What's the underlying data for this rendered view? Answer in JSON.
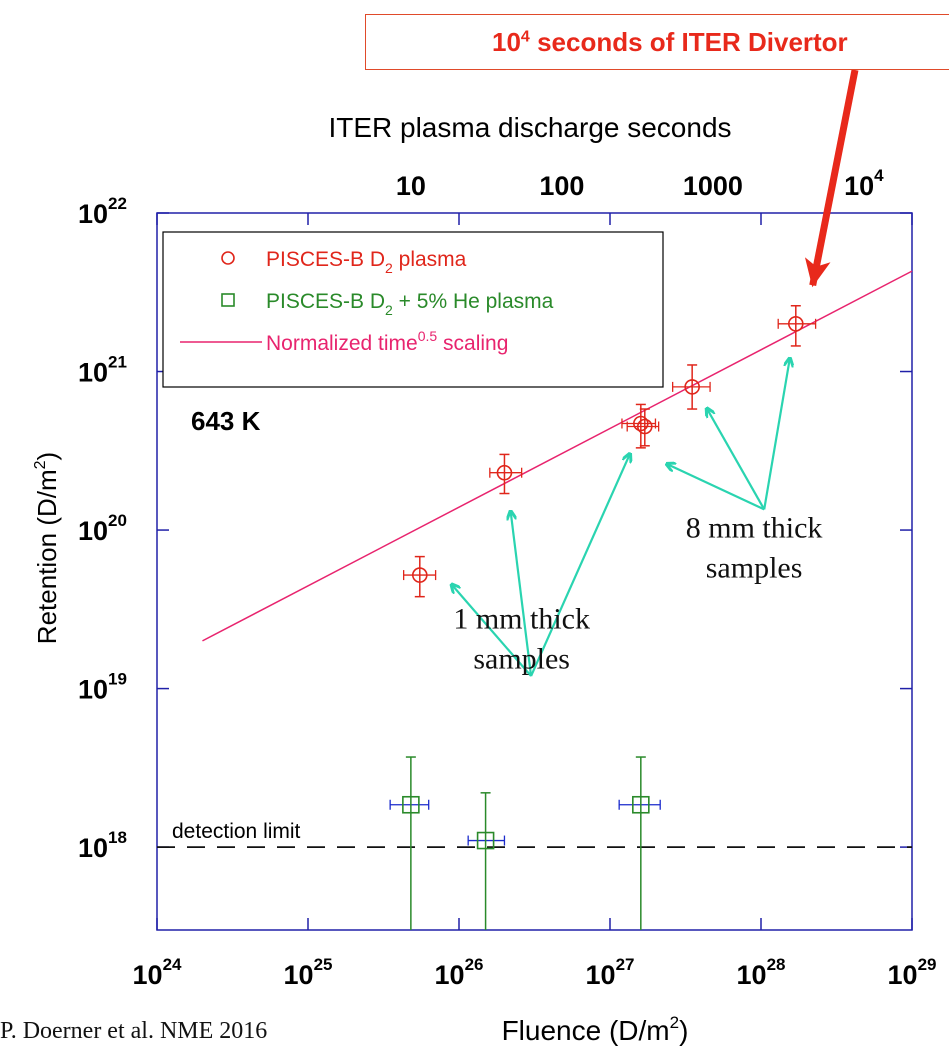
{
  "banner": {
    "exponent": "4",
    "text": "seconds of ITER Divertor"
  },
  "citation": "P. Doerner et al. NME 2016",
  "chart_data": {
    "type": "scatter",
    "xlabel": "Fluence (D/m²)",
    "ylabel": "Retention (D/m²)",
    "top_axis_label": "ITER plasma discharge seconds",
    "top_ticks": [
      {
        "label": "10",
        "fluence": 4.8e+25
      },
      {
        "label": "100",
        "fluence": 4.8e+26
      },
      {
        "label": "1000",
        "fluence": 4.8e+27
      },
      {
        "label": "10⁴",
        "fluence": 4.8e+28
      }
    ],
    "x_log": true,
    "y_log": true,
    "xlim": [
      1e+24,
      1e+29
    ],
    "ylim": [
      3e+17,
      1e+22
    ],
    "x_ticks": [
      {
        "exp": "24",
        "value": 1e+24
      },
      {
        "exp": "25",
        "value": 1e+25
      },
      {
        "exp": "26",
        "value": 1e+26
      },
      {
        "exp": "27",
        "value": 1e+27
      },
      {
        "exp": "28",
        "value": 1e+28
      },
      {
        "exp": "29",
        "value": 1e+29
      }
    ],
    "y_ticks": [
      {
        "exp": "18",
        "value": 1e+18
      },
      {
        "exp": "19",
        "value": 1e+19
      },
      {
        "exp": "20",
        "value": 1e+20
      },
      {
        "exp": "21",
        "value": 1e+21
      },
      {
        "exp": "22",
        "value": 1e+22
      }
    ],
    "annotation_643K": "643 K",
    "detection_limit": {
      "label": "detection limit",
      "value": 1e+18
    },
    "legend": {
      "placement": "top-left",
      "items": [
        {
          "pre": "PISCES-B D",
          "sub": "2",
          "post": " plasma",
          "marker": "circle",
          "color": "#e0261b"
        },
        {
          "pre": "PISCES-B D",
          "sub": "2",
          "post": " + 5% He plasma",
          "marker": "square",
          "color": "#2a8a2a"
        },
        {
          "pre": "Normalized time",
          "sup": "0.5",
          "post": " scaling",
          "marker": "line",
          "color": "#e8246e"
        }
      ]
    },
    "scaling_line": {
      "name": "Normalized time0.5 scaling",
      "x": [
        2e+24,
        1e+29
      ],
      "y": [
        2e+19,
        4.3e+21
      ],
      "color": "#e8246e"
    },
    "series": [
      {
        "name": "PISCES-B D2 plasma",
        "marker": "circle",
        "color": "#e0261b",
        "points": [
          {
            "x": 5.5e+25,
            "y": 5.2e+19,
            "xerr": [
              4.3e+25,
              7e+25
            ],
            "yerr": [
              3.8e+19,
              6.8e+19
            ]
          },
          {
            "x": 2e+26,
            "y": 2.3e+20,
            "xerr": [
              1.6e+26,
              2.6e+26
            ],
            "yerr": [
              1.7e+20,
              3e+20
            ]
          },
          {
            "x": 1.6e+27,
            "y": 4.7e+20,
            "xerr": [
              1.2e+27,
              2e+27
            ],
            "yerr": [
              3.3e+20,
              6.2e+20
            ]
          },
          {
            "x": 1.7e+27,
            "y": 4.5e+20,
            "xerr": [
              1.3e+27,
              2.1e+27
            ],
            "yerr": [
              3.4e+20,
              5.8e+20
            ]
          },
          {
            "x": 3.5e+27,
            "y": 8e+20,
            "xerr": [
              2.6e+27,
              4.6e+27
            ],
            "yerr": [
              5.8e+20,
              1.1e+21
            ]
          },
          {
            "x": 1.7e+28,
            "y": 2e+21,
            "xerr": [
              1.3e+28,
              2.3e+28
            ],
            "yerr": [
              1.45e+21,
              2.6e+21
            ]
          }
        ]
      },
      {
        "name": "PISCES-B D2 + 5% He plasma",
        "marker": "square",
        "color": "#2a8a2a",
        "xerr_color": "#1a2acc",
        "points": [
          {
            "x": 4.8e+25,
            "y": 1.85e+18,
            "xerr": [
              3.5e+25,
              6.3e+25
            ],
            "yerr": [
              3e+17,
              3.7e+18
            ]
          },
          {
            "x": 1.5e+26,
            "y": 1.1e+18,
            "xerr": [
              1.15e+26,
              2e+26
            ],
            "yerr": [
              3e+17,
              2.2e+18
            ]
          },
          {
            "x": 1.6e+27,
            "y": 1.85e+18,
            "xerr": [
              1.15e+27,
              2.15e+27
            ],
            "yerr": [
              3e+17,
              3.7e+18
            ]
          }
        ]
      }
    ],
    "callouts": [
      {
        "lines": [
          "1 mm thick",
          "samples"
        ],
        "origin": {
          "x": 3e+26,
          "y": 1.2e+19
        },
        "targets": [
          {
            "x": 9e+25,
            "y": 4.5e+19
          },
          {
            "x": 2.2e+26,
            "y": 1.3e+20
          },
          {
            "x": 1.35e+27,
            "y": 3e+20
          }
        ],
        "text_at": {
          "x": 2.6e+26,
          "y": 2.4e+19
        }
      },
      {
        "lines": [
          "8 mm thick",
          "samples"
        ],
        "origin": {
          "x": 1.05e+28,
          "y": 1.35e+20
        },
        "targets": [
          {
            "x": 2.4e+27,
            "y": 2.6e+20
          },
          {
            "x": 4.4e+27,
            "y": 5.8e+20
          },
          {
            "x": 1.55e+28,
            "y": 1.2e+21
          }
        ],
        "text_at": {
          "x": 9e+27,
          "y": 9e+19
        }
      }
    ],
    "big_arrow_target": {
      "x": 2.2e+28,
      "y": 3.5e+21
    },
    "colors": {
      "axis": "#2020a8",
      "annotation_arrows": "#2ad4b0",
      "banner_arrow": "#e8291b"
    }
  }
}
